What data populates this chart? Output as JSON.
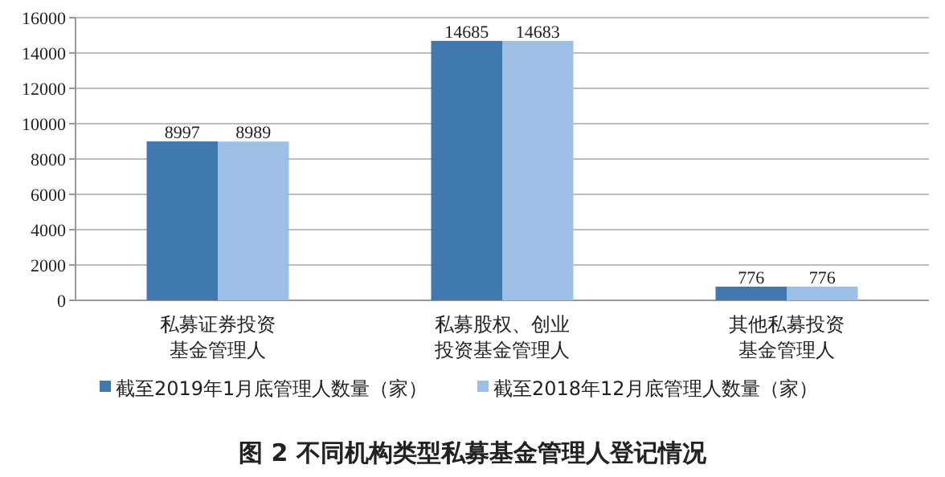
{
  "chart_data": {
    "type": "bar",
    "title": "图 2  不同机构类型私募基金管理人登记情况",
    "categories": [
      "私募证券投资基金管理人",
      "私募股权、创业投资基金管理人",
      "其他私募投资基金管理人"
    ],
    "series": [
      {
        "name": "截至2019年1月底管理人数量（家）",
        "color": "#3f79b0",
        "values": [
          8997,
          14685,
          776
        ]
      },
      {
        "name": "截至2018年12月底管理人数量（家）",
        "color": "#9dbfe6",
        "values": [
          8989,
          14683,
          776
        ]
      }
    ],
    "ylim": [
      0,
      16000
    ],
    "yticks": [
      0,
      2000,
      4000,
      6000,
      8000,
      10000,
      12000,
      14000,
      16000
    ],
    "grid": "y",
    "legend": "bottom",
    "data_labels": true
  }
}
